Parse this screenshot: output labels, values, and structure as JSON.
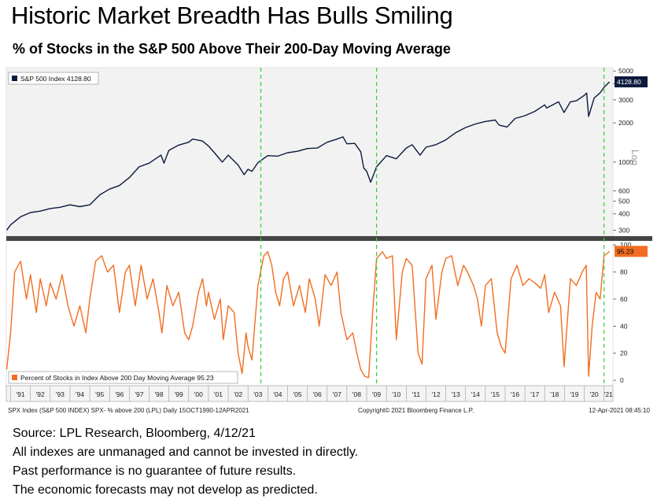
{
  "header": {
    "title": "Historic Market Breadth Has Bulls Smiling",
    "subtitle": "% of Stocks in the S&P 500 Above Their 200-Day Moving Average"
  },
  "chart_data": [
    {
      "type": "line",
      "scale": "log",
      "series": [
        {
          "name": "S&P 500 Index 4128.80",
          "color": "#0b1a3c",
          "points": [
            [
              1990.8,
              300
            ],
            [
              1991.0,
              330
            ],
            [
              1991.5,
              380
            ],
            [
              1992.0,
              410
            ],
            [
              1992.5,
              420
            ],
            [
              1993.0,
              440
            ],
            [
              1993.5,
              450
            ],
            [
              1994.0,
              470
            ],
            [
              1994.5,
              455
            ],
            [
              1995.0,
              470
            ],
            [
              1995.5,
              560
            ],
            [
              1996.0,
              620
            ],
            [
              1996.5,
              660
            ],
            [
              1997.0,
              760
            ],
            [
              1997.5,
              920
            ],
            [
              1998.0,
              980
            ],
            [
              1998.6,
              1130
            ],
            [
              1998.75,
              980
            ],
            [
              1999.0,
              1230
            ],
            [
              1999.5,
              1350
            ],
            [
              2000.0,
              1420
            ],
            [
              2000.2,
              1500
            ],
            [
              2000.7,
              1450
            ],
            [
              2001.0,
              1330
            ],
            [
              2001.3,
              1180
            ],
            [
              2001.7,
              1000
            ],
            [
              2002.0,
              1130
            ],
            [
              2002.5,
              950
            ],
            [
              2002.8,
              800
            ],
            [
              2003.0,
              880
            ],
            [
              2003.2,
              850
            ],
            [
              2003.5,
              990
            ],
            [
              2004.0,
              1120
            ],
            [
              2004.5,
              1110
            ],
            [
              2005.0,
              1180
            ],
            [
              2005.5,
              1210
            ],
            [
              2006.0,
              1270
            ],
            [
              2006.5,
              1280
            ],
            [
              2007.0,
              1420
            ],
            [
              2007.5,
              1500
            ],
            [
              2007.8,
              1560
            ],
            [
              2008.0,
              1380
            ],
            [
              2008.4,
              1390
            ],
            [
              2008.7,
              1200
            ],
            [
              2008.85,
              900
            ],
            [
              2009.0,
              850
            ],
            [
              2009.2,
              700
            ],
            [
              2009.5,
              920
            ],
            [
              2010.0,
              1120
            ],
            [
              2010.5,
              1060
            ],
            [
              2011.0,
              1280
            ],
            [
              2011.3,
              1360
            ],
            [
              2011.7,
              1130
            ],
            [
              2012.0,
              1300
            ],
            [
              2012.5,
              1360
            ],
            [
              2013.0,
              1480
            ],
            [
              2013.5,
              1680
            ],
            [
              2014.0,
              1840
            ],
            [
              2014.5,
              1960
            ],
            [
              2015.0,
              2050
            ],
            [
              2015.5,
              2100
            ],
            [
              2015.7,
              1920
            ],
            [
              2016.1,
              1860
            ],
            [
              2016.5,
              2160
            ],
            [
              2017.0,
              2270
            ],
            [
              2017.5,
              2450
            ],
            [
              2018.0,
              2750
            ],
            [
              2018.1,
              2600
            ],
            [
              2018.7,
              2900
            ],
            [
              2018.98,
              2400
            ],
            [
              2019.3,
              2900
            ],
            [
              2019.6,
              2950
            ],
            [
              2020.0,
              3250
            ],
            [
              2020.12,
              3380
            ],
            [
              2020.22,
              2240
            ],
            [
              2020.5,
              3100
            ],
            [
              2020.8,
              3400
            ],
            [
              2021.0,
              3750
            ],
            [
              2021.28,
              4128.8
            ]
          ]
        }
      ],
      "yticks": [
        300,
        400,
        500,
        600,
        1000,
        2000,
        3000,
        4000,
        5000
      ],
      "ytick_labels": [
        "300",
        "400",
        "500",
        "600",
        "1000",
        "2000",
        "3000",
        "4000",
        "5000"
      ],
      "ylim": [
        270,
        5300
      ],
      "ylabel": "Log",
      "last_value_label": "4128.80",
      "legend_position": "top-left"
    },
    {
      "type": "line",
      "series": [
        {
          "name": "Percent of Stocks in Index Above 200 Day Moving Average 95.23",
          "color": "#f26d21",
          "points": [
            [
              1990.8,
              8
            ],
            [
              1991.0,
              35
            ],
            [
              1991.2,
              80
            ],
            [
              1991.5,
              88
            ],
            [
              1991.8,
              60
            ],
            [
              1992.0,
              78
            ],
            [
              1992.3,
              50
            ],
            [
              1992.5,
              75
            ],
            [
              1992.8,
              55
            ],
            [
              1993.0,
              72
            ],
            [
              1993.3,
              60
            ],
            [
              1993.6,
              78
            ],
            [
              1993.9,
              55
            ],
            [
              1994.0,
              50
            ],
            [
              1994.2,
              40
            ],
            [
              1994.5,
              55
            ],
            [
              1994.8,
              35
            ],
            [
              1995.0,
              60
            ],
            [
              1995.3,
              88
            ],
            [
              1995.6,
              92
            ],
            [
              1995.9,
              80
            ],
            [
              1996.2,
              85
            ],
            [
              1996.5,
              50
            ],
            [
              1996.8,
              80
            ],
            [
              1997.0,
              85
            ],
            [
              1997.3,
              55
            ],
            [
              1997.6,
              85
            ],
            [
              1997.9,
              60
            ],
            [
              1998.2,
              75
            ],
            [
              1998.5,
              50
            ],
            [
              1998.65,
              35
            ],
            [
              1998.9,
              70
            ],
            [
              1999.2,
              55
            ],
            [
              1999.5,
              65
            ],
            [
              1999.8,
              35
            ],
            [
              2000.0,
              30
            ],
            [
              2000.2,
              40
            ],
            [
              2000.5,
              65
            ],
            [
              2000.7,
              75
            ],
            [
              2000.9,
              55
            ],
            [
              2001.0,
              65
            ],
            [
              2001.3,
              45
            ],
            [
              2001.6,
              60
            ],
            [
              2001.75,
              30
            ],
            [
              2002.0,
              55
            ],
            [
              2002.3,
              50
            ],
            [
              2002.5,
              20
            ],
            [
              2002.7,
              5
            ],
            [
              2002.9,
              35
            ],
            [
              2003.0,
              25
            ],
            [
              2003.2,
              15
            ],
            [
              2003.5,
              70
            ],
            [
              2003.8,
              92
            ],
            [
              2004.0,
              95
            ],
            [
              2004.2,
              85
            ],
            [
              2004.4,
              65
            ],
            [
              2004.6,
              55
            ],
            [
              2004.8,
              75
            ],
            [
              2005.0,
              80
            ],
            [
              2005.3,
              55
            ],
            [
              2005.6,
              70
            ],
            [
              2005.9,
              50
            ],
            [
              2006.1,
              75
            ],
            [
              2006.4,
              60
            ],
            [
              2006.6,
              40
            ],
            [
              2006.9,
              78
            ],
            [
              2007.2,
              70
            ],
            [
              2007.5,
              80
            ],
            [
              2007.7,
              50
            ],
            [
              2008.0,
              30
            ],
            [
              2008.3,
              35
            ],
            [
              2008.5,
              20
            ],
            [
              2008.7,
              8
            ],
            [
              2008.9,
              3
            ],
            [
              2009.1,
              2
            ],
            [
              2009.3,
              50
            ],
            [
              2009.5,
              90
            ],
            [
              2009.8,
              95
            ],
            [
              2010.0,
              90
            ],
            [
              2010.3,
              92
            ],
            [
              2010.5,
              30
            ],
            [
              2010.8,
              80
            ],
            [
              2011.0,
              90
            ],
            [
              2011.3,
              85
            ],
            [
              2011.6,
              20
            ],
            [
              2011.8,
              12
            ],
            [
              2012.0,
              75
            ],
            [
              2012.3,
              85
            ],
            [
              2012.5,
              45
            ],
            [
              2012.8,
              80
            ],
            [
              2013.0,
              90
            ],
            [
              2013.3,
              92
            ],
            [
              2013.6,
              70
            ],
            [
              2013.9,
              85
            ],
            [
              2014.1,
              80
            ],
            [
              2014.4,
              70
            ],
            [
              2014.6,
              60
            ],
            [
              2014.8,
              40
            ],
            [
              2015.0,
              70
            ],
            [
              2015.3,
              75
            ],
            [
              2015.6,
              35
            ],
            [
              2015.8,
              25
            ],
            [
              2016.0,
              20
            ],
            [
              2016.3,
              75
            ],
            [
              2016.6,
              85
            ],
            [
              2016.9,
              70
            ],
            [
              2017.2,
              75
            ],
            [
              2017.5,
              72
            ],
            [
              2017.8,
              68
            ],
            [
              2018.0,
              78
            ],
            [
              2018.2,
              50
            ],
            [
              2018.5,
              65
            ],
            [
              2018.8,
              55
            ],
            [
              2018.98,
              10
            ],
            [
              2019.3,
              75
            ],
            [
              2019.6,
              70
            ],
            [
              2019.9,
              80
            ],
            [
              2020.1,
              85
            ],
            [
              2020.22,
              3
            ],
            [
              2020.4,
              40
            ],
            [
              2020.6,
              65
            ],
            [
              2020.8,
              60
            ],
            [
              2021.0,
              92
            ],
            [
              2021.28,
              95.23
            ]
          ]
        }
      ],
      "yticks": [
        0,
        20,
        40,
        60,
        80,
        100
      ],
      "ytick_labels": [
        "0",
        "20",
        "40",
        "60",
        "80",
        "100"
      ],
      "ylim": [
        -4,
        103
      ],
      "last_value_label": "95.23",
      "legend_position": "bottom-left"
    }
  ],
  "x_axis": {
    "range": [
      1990.78,
      2021.45
    ],
    "tick_labels": [
      "'91",
      "'92",
      "'93",
      "'94",
      "'95",
      "'96",
      "'97",
      "'98",
      "'99",
      "'00",
      "'01",
      "'02",
      "'03",
      "'04",
      "'05",
      "'06",
      "'07",
      "'08",
      "'09",
      "'10",
      "'11",
      "'12",
      "'13",
      "'14",
      "'15",
      "'16",
      "'17",
      "'18",
      "'19",
      "'20",
      "'21"
    ],
    "tick_years": [
      1991,
      1992,
      1993,
      1994,
      1995,
      1996,
      1997,
      1998,
      1999,
      2000,
      2001,
      2002,
      2003,
      2004,
      2005,
      2006,
      2007,
      2008,
      2009,
      2010,
      2011,
      2012,
      2013,
      2014,
      2015,
      2016,
      2017,
      2018,
      2019,
      2020,
      2021
    ]
  },
  "markers": {
    "vline_dates": [
      2003.65,
      2009.5,
      2021.0
    ],
    "color": "#3dd13d"
  },
  "footer": {
    "left": "SPX Index (S&P 500 INDEX) SPX- % above 200 (LPL)  Daily 15OCT1990-12APR2021",
    "center": "Copyright© 2021 Bloomberg Finance L.P.",
    "right": "12-Apr-2021 08:45:10"
  },
  "notes": [
    "Source: LPL Research, Bloomberg, 4/12/21",
    "All indexes are unmanaged and cannot be invested in directly.",
    "Past performance is no guarantee of future results.",
    "The economic forecasts may not develop as predicted."
  ]
}
